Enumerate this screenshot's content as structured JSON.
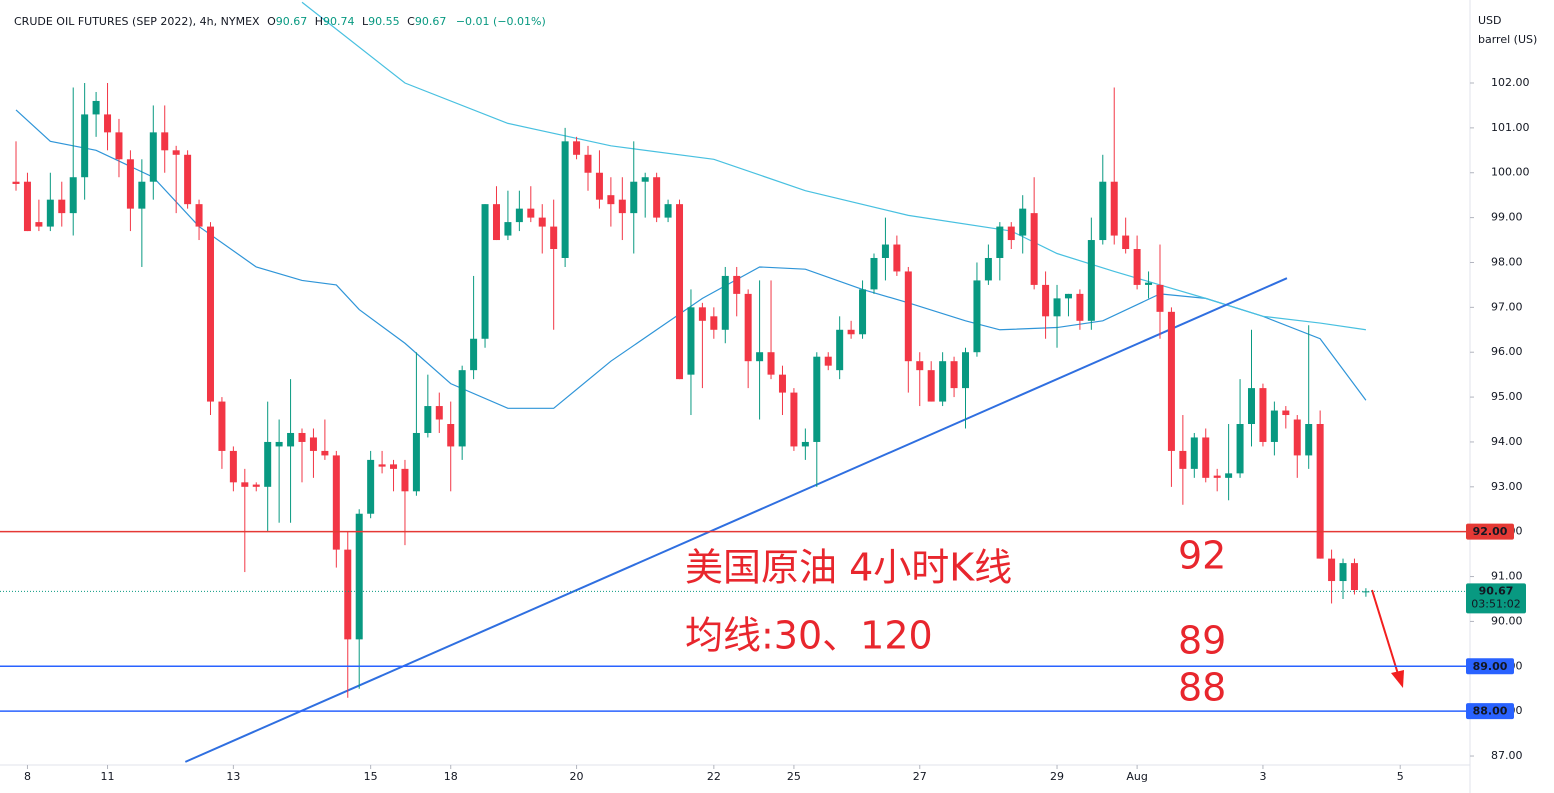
{
  "chart_data": {
    "type": "candlestick",
    "header": [
      "CRUDE OIL FUTURES (SEP 2022), 4h, NYMEX",
      "O",
      "90.67",
      "H",
      "90.74",
      "L",
      "90.55",
      "C",
      "90.67",
      "−0.01 (−0.01%)"
    ],
    "unit": [
      "USD",
      "barrel (US)"
    ],
    "up_color": "#089981",
    "down_color": "#f23645",
    "open": [
      99.8,
      99.8,
      98.9,
      98.8,
      99.4,
      99.1,
      99.9,
      101.3,
      101.3,
      100.9,
      100.3,
      99.2,
      99.8,
      100.9,
      100.5,
      100.4,
      99.3,
      98.8,
      94.9,
      93.8,
      93.1,
      93.05,
      93.0,
      93.9,
      93.9,
      94.2,
      94.1,
      93.8,
      93.7,
      91.6,
      89.6,
      92.4,
      93.5,
      93.5,
      93.4,
      92.9,
      94.2,
      94.8,
      94.4,
      93.9,
      95.6,
      96.3,
      99.3,
      98.6,
      98.9,
      99.2,
      99.0,
      98.8,
      98.1,
      100.7,
      100.4,
      100.0,
      99.5,
      99.4,
      99.1,
      99.8,
      99.9,
      99.0,
      99.3,
      95.5,
      97.0,
      96.8,
      96.5,
      97.7,
      97.3,
      95.8,
      96.0,
      95.5,
      95.1,
      93.9,
      94.0,
      95.9,
      95.6,
      96.5,
      96.4,
      97.4,
      98.1,
      98.4,
      97.8,
      95.8,
      95.6,
      94.9,
      95.8,
      95.2,
      96.0,
      97.6,
      98.1,
      98.8,
      98.6,
      99.1,
      97.5,
      96.8,
      97.2,
      97.3,
      96.7,
      98.5,
      99.8,
      98.6,
      98.3,
      97.5,
      97.5,
      96.9,
      93.8,
      93.4,
      94.1,
      93.25,
      93.2,
      93.3,
      94.4,
      95.2,
      94.0,
      94.7,
      94.5,
      93.7,
      94.4,
      91.4,
      90.9,
      91.3,
      90.67
    ],
    "high": [
      100.7,
      100.0,
      99.4,
      100.0,
      99.8,
      101.9,
      102.0,
      101.8,
      102.0,
      101.2,
      100.5,
      100.3,
      101.5,
      101.5,
      100.6,
      100.5,
      99.4,
      98.9,
      95.0,
      93.9,
      93.4,
      93.1,
      94.9,
      94.5,
      95.4,
      94.3,
      94.3,
      94.5,
      93.8,
      92.0,
      92.5,
      93.8,
      93.8,
      93.6,
      93.6,
      96.0,
      95.5,
      95.1,
      94.9,
      95.7,
      97.7,
      99.3,
      99.7,
      99.6,
      99.6,
      99.7,
      99.3,
      99.4,
      101.0,
      100.8,
      100.6,
      100.5,
      99.9,
      99.9,
      100.7,
      100.0,
      100.0,
      99.4,
      99.4,
      97.4,
      97.1,
      97.0,
      97.9,
      97.9,
      97.4,
      97.6,
      97.6,
      95.7,
      95.2,
      94.3,
      96.0,
      96.0,
      96.8,
      96.7,
      97.6,
      98.2,
      99.0,
      98.6,
      97.9,
      96.0,
      95.8,
      96.0,
      95.9,
      96.1,
      98.0,
      98.4,
      98.9,
      98.9,
      99.5,
      99.9,
      97.8,
      97.5,
      97.3,
      97.4,
      99.0,
      100.4,
      101.9,
      99.0,
      98.6,
      97.8,
      98.4,
      97.0,
      94.6,
      94.2,
      94.3,
      93.4,
      94.4,
      95.4,
      96.5,
      95.3,
      94.9,
      94.8,
      94.6,
      96.6,
      94.7,
      91.6,
      91.4,
      91.4,
      90.74
    ],
    "low": [
      99.6,
      98.7,
      98.7,
      98.7,
      98.8,
      98.6,
      99.4,
      100.8,
      100.5,
      99.9,
      98.7,
      97.9,
      99.4,
      100.0,
      99.1,
      99.2,
      98.5,
      94.6,
      93.4,
      92.9,
      91.1,
      92.9,
      92.0,
      92.2,
      92.2,
      93.1,
      93.2,
      93.6,
      91.2,
      88.3,
      88.5,
      92.3,
      93.3,
      92.9,
      91.7,
      92.8,
      94.1,
      94.2,
      92.9,
      93.6,
      95.4,
      96.1,
      98.5,
      98.5,
      98.7,
      98.9,
      98.2,
      96.5,
      97.9,
      100.3,
      99.6,
      99.2,
      98.8,
      98.5,
      98.2,
      99.0,
      98.9,
      98.9,
      95.4,
      94.6,
      95.2,
      96.3,
      96.2,
      96.8,
      95.2,
      94.5,
      95.4,
      94.6,
      93.8,
      93.6,
      93.0,
      95.6,
      95.4,
      96.3,
      96.3,
      97.3,
      97.6,
      97.7,
      95.1,
      94.8,
      94.9,
      94.8,
      95.0,
      94.3,
      95.9,
      97.5,
      97.6,
      98.3,
      98.2,
      97.4,
      96.3,
      96.1,
      96.8,
      96.5,
      96.5,
      98.4,
      98.4,
      98.2,
      97.4,
      97.2,
      96.3,
      93.0,
      92.6,
      93.2,
      93.1,
      92.9,
      92.7,
      93.2,
      93.9,
      93.9,
      93.7,
      94.3,
      93.2,
      93.4,
      91.4,
      90.4,
      90.5,
      90.6,
      90.55
    ],
    "close": [
      99.75,
      98.7,
      98.8,
      99.4,
      99.1,
      99.9,
      101.3,
      101.6,
      100.9,
      100.3,
      99.2,
      99.8,
      100.9,
      100.5,
      100.4,
      99.3,
      98.8,
      94.9,
      93.8,
      93.1,
      93.0,
      93.0,
      94.0,
      94.0,
      94.2,
      94.0,
      93.8,
      93.7,
      91.6,
      89.6,
      92.4,
      93.6,
      93.45,
      93.4,
      92.9,
      94.2,
      94.8,
      94.5,
      93.9,
      95.6,
      96.3,
      99.3,
      98.5,
      98.9,
      99.2,
      99.0,
      98.8,
      98.3,
      100.7,
      100.4,
      100.0,
      99.4,
      99.3,
      99.1,
      99.8,
      99.9,
      99.0,
      99.3,
      95.4,
      97.0,
      96.7,
      96.5,
      97.7,
      97.3,
      95.8,
      96.0,
      95.5,
      95.1,
      93.9,
      94.0,
      95.9,
      95.7,
      96.5,
      96.4,
      97.4,
      98.1,
      98.4,
      97.8,
      95.8,
      95.6,
      94.9,
      95.8,
      95.2,
      96.0,
      97.6,
      98.1,
      98.8,
      98.5,
      99.2,
      97.5,
      96.8,
      97.2,
      97.3,
      96.7,
      98.5,
      99.8,
      98.6,
      98.3,
      97.5,
      97.55,
      96.9,
      93.8,
      93.4,
      94.1,
      93.2,
      93.2,
      93.3,
      94.4,
      95.2,
      94.0,
      94.7,
      94.6,
      93.7,
      94.4,
      91.4,
      90.9,
      91.3,
      90.7,
      90.67
    ],
    "ma": [
      {
        "name": "30",
        "color": "#2f95d8",
        "x": [
          0,
          3,
          7,
          12,
          16,
          21,
          25,
          28,
          30,
          34,
          38,
          43,
          47,
          52,
          56,
          60,
          65,
          69,
          74,
          78,
          83,
          86,
          91,
          95,
          100,
          104,
          109,
          114,
          118
        ],
        "values": [
          101.4,
          100.7,
          100.5,
          99.9,
          98.8,
          97.9,
          97.6,
          97.5,
          96.95,
          96.2,
          95.3,
          94.75,
          94.75,
          95.8,
          96.5,
          97.2,
          97.9,
          97.85,
          97.4,
          97.1,
          96.7,
          96.5,
          96.55,
          96.7,
          97.3,
          97.2,
          96.8,
          96.3,
          94.93
        ]
      },
      {
        "name": "120",
        "color": "#48c0e0",
        "x": [
          25,
          34,
          43,
          52,
          61,
          69,
          78,
          87,
          91,
          96,
          100,
          104,
          109,
          114,
          118
        ],
        "values": [
          103.8,
          102.0,
          101.1,
          100.6,
          100.3,
          99.6,
          99.05,
          98.7,
          98.2,
          97.8,
          97.5,
          97.2,
          96.8,
          96.65,
          96.5
        ]
      }
    ],
    "trendline": {
      "color": "#2f6fe0",
      "x": [
        14.8,
        111.1
      ],
      "values": [
        86.87,
        97.65
      ]
    },
    "levels": [
      {
        "value": 92,
        "label": "92.00",
        "color": "#e53935"
      },
      {
        "value": 89,
        "label": "89.00",
        "color": "#2962ff"
      },
      {
        "value": 88,
        "label": "88.00",
        "color": "#2962ff"
      }
    ],
    "last_price": {
      "value": 90.67,
      "label": "90.67",
      "countdown": "03:51:02",
      "color": "#089981"
    },
    "annotations": [
      "美国原油 4小时K线",
      "均线:30、120",
      "92",
      "89",
      "88"
    ],
    "xlim": [
      -1.4,
      127.1
    ],
    "xticks": [
      {
        "value": 1,
        "label": "8"
      },
      {
        "value": 8,
        "label": "11"
      },
      {
        "value": 19,
        "label": "13"
      },
      {
        "value": 31,
        "label": "15"
      },
      {
        "value": 38,
        "label": "18"
      },
      {
        "value": 49,
        "label": "20"
      },
      {
        "value": 61,
        "label": "22"
      },
      {
        "value": 68,
        "label": "25"
      },
      {
        "value": 79,
        "label": "27"
      },
      {
        "value": 91,
        "label": "29"
      },
      {
        "value": 98,
        "label": "Aug"
      },
      {
        "value": 109,
        "label": "3"
      },
      {
        "value": 121,
        "label": "5"
      }
    ],
    "ylim": [
      86.8,
      103.85
    ],
    "yticks": [
      {
        "value": 87,
        "label": "87.00"
      },
      {
        "value": 88,
        "label": "88.00"
      },
      {
        "value": 89,
        "label": "89.00"
      },
      {
        "value": 90,
        "label": "90.00"
      },
      {
        "value": 91,
        "label": "91.00"
      },
      {
        "value": 92,
        "label": "92.00"
      },
      {
        "value": 93,
        "label": "93.00"
      },
      {
        "value": 94,
        "label": "94.00"
      },
      {
        "value": 95,
        "label": "95.00"
      },
      {
        "value": 96,
        "label": "96.00"
      },
      {
        "value": 97,
        "label": "97.00"
      },
      {
        "value": 98,
        "label": "98.00"
      },
      {
        "value": 99,
        "label": "99.00"
      },
      {
        "value": 100,
        "label": "100.00"
      },
      {
        "value": 101,
        "label": "101.00"
      },
      {
        "value": 102,
        "label": "102.00"
      }
    ],
    "grid": false
  }
}
